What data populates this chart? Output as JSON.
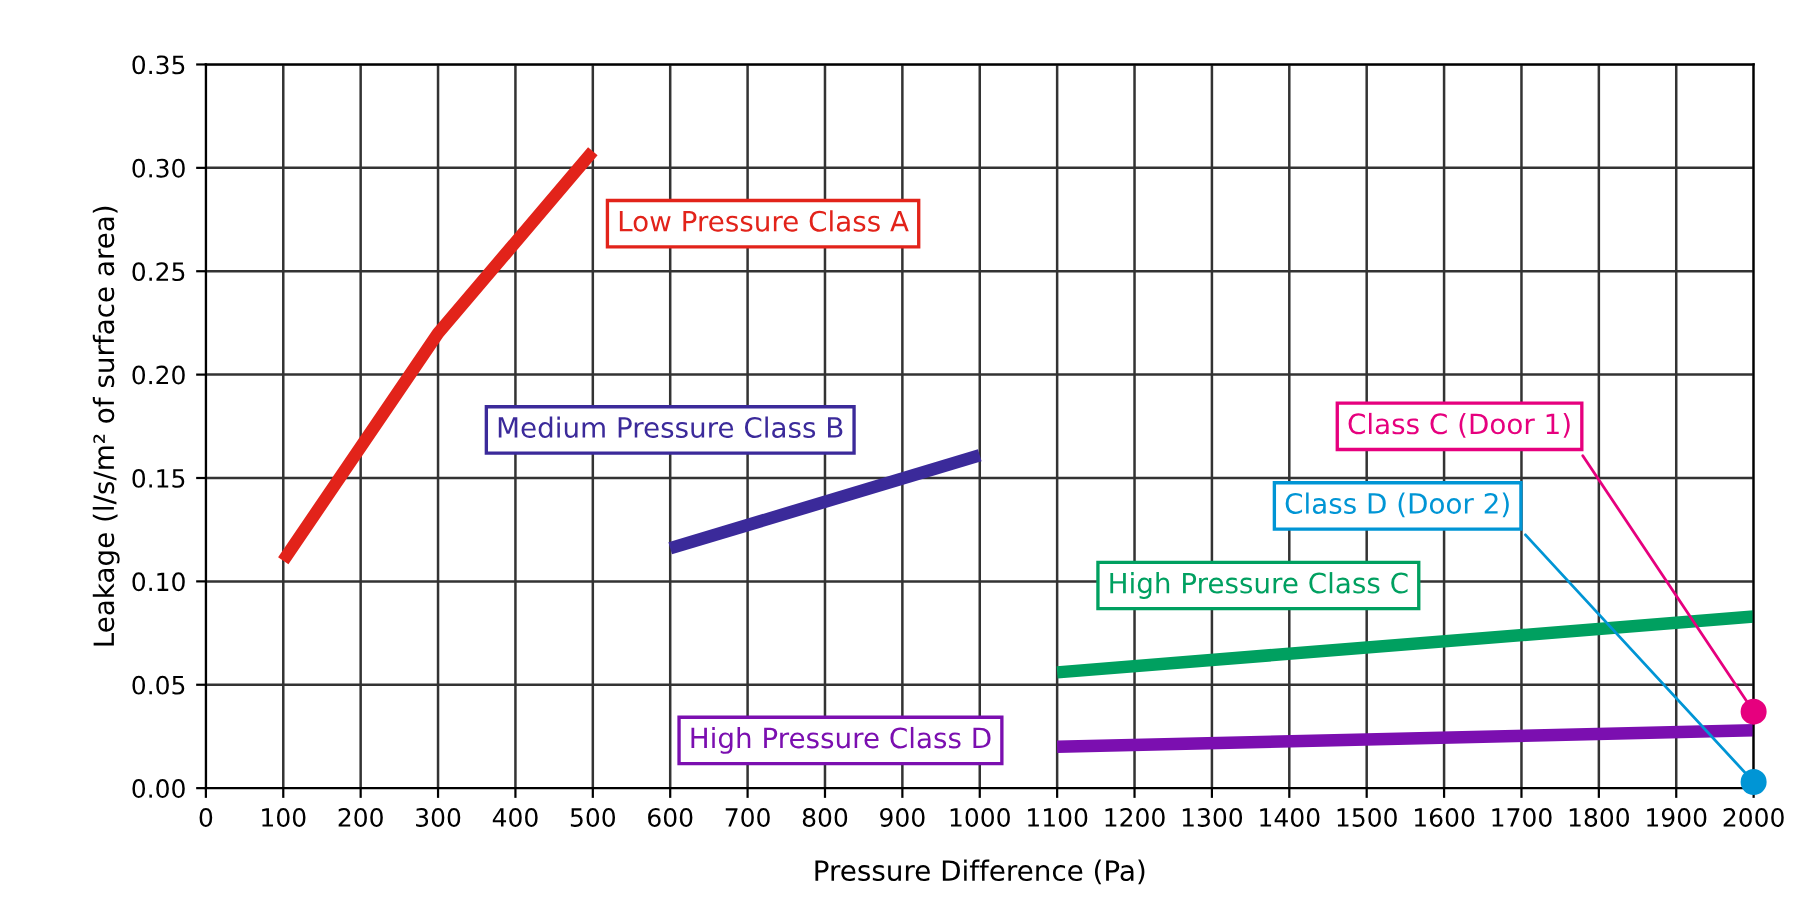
{
  "chart_data": {
    "type": "line",
    "xlabel": "Pressure Difference (Pa)",
    "ylabel": "Leakage (l/s/m² of surface area)",
    "xlim": [
      0,
      2000
    ],
    "xticks": [
      0,
      100,
      200,
      300,
      400,
      500,
      600,
      700,
      800,
      900,
      1000,
      1100,
      1200,
      1300,
      1400,
      1500,
      1600,
      1700,
      1800,
      1900,
      2000
    ],
    "ylim": [
      0,
      0.35
    ],
    "yticks": [
      {
        "value": 0,
        "label": "0.00"
      },
      {
        "value": 0.05,
        "label": "0.05"
      },
      {
        "value": 0.1,
        "label": "0.10"
      },
      {
        "value": 0.15,
        "label": "0.15"
      },
      {
        "value": 0.2,
        "label": "0.20"
      },
      {
        "value": 0.25,
        "label": "0.25"
      },
      {
        "value": 0.3,
        "label": "0.30"
      },
      {
        "value": 0.35,
        "label": "0.35"
      }
    ],
    "grid": true,
    "series": [
      {
        "name": "Low Pressure Class A",
        "color": "#e2231a",
        "x": [
          100,
          300,
          500
        ],
        "values": [
          0.11,
          0.22,
          0.308
        ]
      },
      {
        "name": "Medium Pressure Class B",
        "color": "#3b2a9a",
        "x": [
          600,
          1000
        ],
        "values": [
          0.116,
          0.161
        ]
      },
      {
        "name": "High Pressure Class C",
        "color": "#00a060",
        "x": [
          1100,
          2000
        ],
        "values": [
          0.056,
          0.083
        ]
      },
      {
        "name": "High Pressure Class D",
        "color": "#7b0fb0",
        "x": [
          1100,
          2000
        ],
        "values": [
          0.02,
          0.028
        ]
      },
      {
        "name": "Class C (Door 1)",
        "type": "scatter",
        "marker": "circle",
        "color": "#e6007e",
        "x": [
          2000
        ],
        "values": [
          0.037
        ]
      },
      {
        "name": "Class D (Door 2)",
        "type": "scatter",
        "marker": "circle",
        "color": "#0095d5",
        "x": [
          2000
        ],
        "values": [
          0.003
        ]
      }
    ]
  }
}
